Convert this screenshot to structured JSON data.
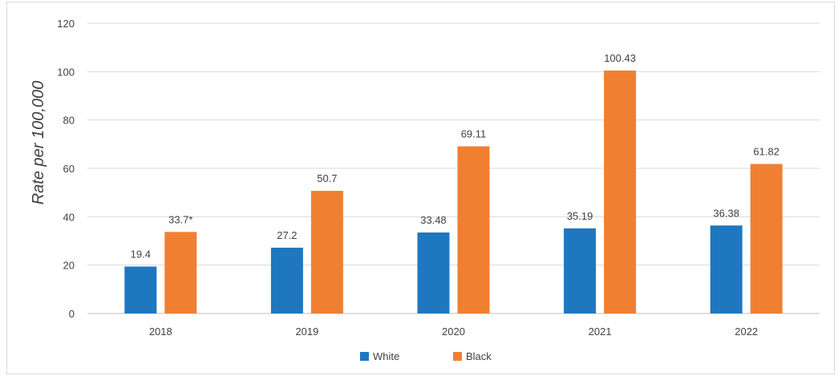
{
  "chart_data": {
    "type": "bar",
    "title": "",
    "xlabel": "",
    "ylabel": "Rate per 100,000",
    "categories": [
      "2018",
      "2019",
      "2020",
      "2021",
      "2022"
    ],
    "series": [
      {
        "name": "White",
        "color": "#1f77c0",
        "values": [
          19.4,
          27.2,
          33.48,
          35.19,
          36.38
        ],
        "labels": [
          "19.4",
          "27.2",
          "33.48",
          "35.19",
          "36.38"
        ]
      },
      {
        "name": "Black",
        "color": "#f07f32",
        "values": [
          33.7,
          50.7,
          69.11,
          100.43,
          61.82
        ],
        "labels": [
          "33.7*",
          "50.7",
          "69.11",
          "100.43",
          "61.82"
        ]
      }
    ],
    "ylim": [
      0,
      120
    ],
    "yticks": [
      "0",
      "20",
      "40",
      "60",
      "80",
      "100",
      "120"
    ],
    "grid": true,
    "legend": "bottom-center"
  }
}
